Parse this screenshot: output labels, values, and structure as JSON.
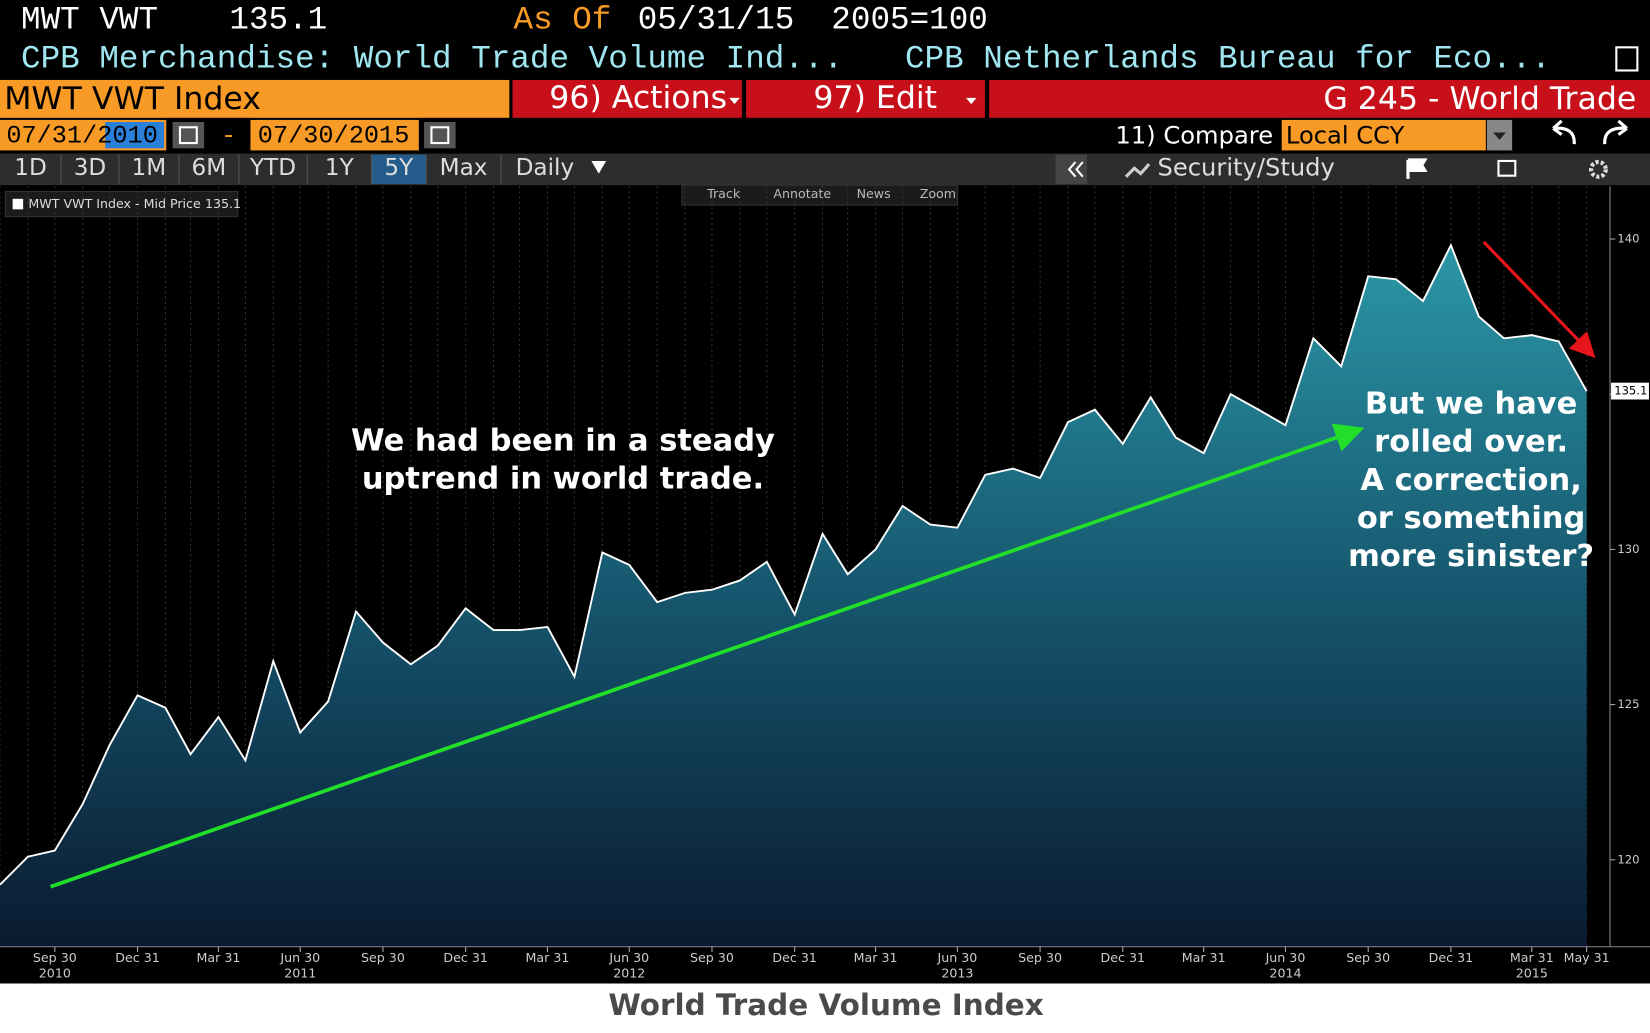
{
  "header": {
    "ticker": "MWT VWT",
    "price": "135.1",
    "as_of_label": "As Of",
    "as_of_date": "05/31/15",
    "base": "2005=100",
    "description": "CPB Merchandise: World Trade Volume Ind...",
    "source": "CPB Netherlands Bureau for Eco..."
  },
  "toolbar": {
    "security": "MWT VWT Index",
    "actions": "96) Actions",
    "edit": "97) Edit",
    "page": "G 245 - World Trade",
    "start_date": "07/31/2010",
    "separator": "-",
    "end_date": "07/30/2015",
    "compare": "11) Compare",
    "currency": "Local CCY",
    "periods": [
      "1D",
      "3D",
      "1M",
      "6M",
      "YTD",
      "1Y",
      "5Y",
      "Max"
    ],
    "frequency": "Daily",
    "study": "Security/Study",
    "tools": [
      "Track",
      "Annotate",
      "News",
      "Zoom"
    ]
  },
  "chart_data": {
    "type": "area",
    "title": "World Trade Volume Index",
    "x": [
      "2010-07-31",
      "2010-08-31",
      "2010-09-30",
      "2010-10-31",
      "2010-11-30",
      "2010-12-31",
      "2011-01-31",
      "2011-02-28",
      "2011-03-31",
      "2011-04-30",
      "2011-05-31",
      "2011-06-30",
      "2011-07-31",
      "2011-08-31",
      "2011-09-30",
      "2011-10-31",
      "2011-11-30",
      "2011-12-31",
      "2012-01-31",
      "2012-02-29",
      "2012-03-31",
      "2012-04-30",
      "2012-05-31",
      "2012-06-30",
      "2012-07-31",
      "2012-08-31",
      "2012-09-30",
      "2012-10-31",
      "2012-11-30",
      "2012-12-31",
      "2013-01-31",
      "2013-02-28",
      "2013-03-31",
      "2013-04-30",
      "2013-05-31",
      "2013-06-30",
      "2013-07-31",
      "2013-08-31",
      "2013-09-30",
      "2013-10-31",
      "2013-11-30",
      "2013-12-31",
      "2014-01-31",
      "2014-02-28",
      "2014-03-31",
      "2014-04-30",
      "2014-05-31",
      "2014-06-30",
      "2014-07-31",
      "2014-08-31",
      "2014-09-30",
      "2014-10-31",
      "2014-11-30",
      "2014-12-31",
      "2015-01-31",
      "2015-02-28",
      "2015-03-31",
      "2015-04-30",
      "2015-05-31"
    ],
    "series": [
      {
        "name": "MWT VWT Index - Mid Price",
        "color": "#ffffff",
        "values": [
          119.2,
          120.1,
          120.3,
          121.8,
          123.7,
          125.3,
          124.9,
          123.4,
          124.6,
          123.2,
          126.4,
          124.1,
          125.1,
          128.0,
          127.0,
          126.3,
          126.9,
          128.1,
          127.4,
          127.4,
          127.5,
          125.9,
          129.9,
          129.5,
          128.3,
          128.6,
          128.7,
          129.0,
          129.6,
          127.9,
          130.5,
          129.2,
          130.0,
          131.4,
          130.8,
          130.7,
          132.4,
          132.6,
          132.3,
          134.1,
          134.5,
          133.4,
          134.9,
          133.6,
          133.1,
          135.0,
          134.5,
          134.0,
          136.8,
          135.9,
          138.8,
          138.7,
          138.0,
          139.8,
          137.5,
          136.8,
          136.9,
          136.7,
          135.1
        ]
      }
    ],
    "last_price": 135.1,
    "xlim": [
      "2010-07-31",
      "2015-06-26"
    ],
    "xticks": [
      {
        "value": "2010-09-30",
        "label": "Sep 30"
      },
      {
        "value": "2010-12-31",
        "label": "Dec 31"
      },
      {
        "value": "2011-03-31",
        "label": "Mar 31"
      },
      {
        "value": "2011-06-30",
        "label": "Jun 30"
      },
      {
        "value": "2011-09-30",
        "label": "Sep 30"
      },
      {
        "value": "2011-12-31",
        "label": "Dec 31"
      },
      {
        "value": "2012-03-31",
        "label": "Mar 31"
      },
      {
        "value": "2012-06-30",
        "label": "Jun 30"
      },
      {
        "value": "2012-09-30",
        "label": "Sep 30"
      },
      {
        "value": "2012-12-31",
        "label": "Dec 31"
      },
      {
        "value": "2013-03-31",
        "label": "Mar 31"
      },
      {
        "value": "2013-06-30",
        "label": "Jun 30"
      },
      {
        "value": "2013-09-30",
        "label": "Sep 30"
      },
      {
        "value": "2013-12-31",
        "label": "Dec 31"
      },
      {
        "value": "2014-03-31",
        "label": "Mar 31"
      },
      {
        "value": "2014-06-30",
        "label": "Jun 30"
      },
      {
        "value": "2014-09-30",
        "label": "Sep 30"
      },
      {
        "value": "2014-12-31",
        "label": "Dec 31"
      },
      {
        "value": "2015-03-31",
        "label": "Mar 31"
      },
      {
        "value": "2015-05-31",
        "label": "May 31"
      }
    ],
    "xtick_years": [
      {
        "value": "2010-09-30",
        "label": "2010"
      },
      {
        "value": "2011-06-30",
        "label": "2011"
      },
      {
        "value": "2012-06-30",
        "label": "2012"
      },
      {
        "value": "2013-06-30",
        "label": "2013"
      },
      {
        "value": "2014-06-30",
        "label": "2014"
      },
      {
        "value": "2015-03-31",
        "label": "2015"
      }
    ],
    "ylim": [
      117.2,
      141.7
    ],
    "yticks": [
      120,
      125,
      130,
      135,
      140
    ],
    "y_axis_side": "right",
    "grid": true,
    "annotations": [
      {
        "lines": [
          "We had been in a steady",
          "uptrend in world trade."
        ]
      },
      {
        "lines": [
          "But we have",
          "rolled over.",
          "A correction,",
          "or something",
          "more sinister?"
        ]
      }
    ]
  }
}
